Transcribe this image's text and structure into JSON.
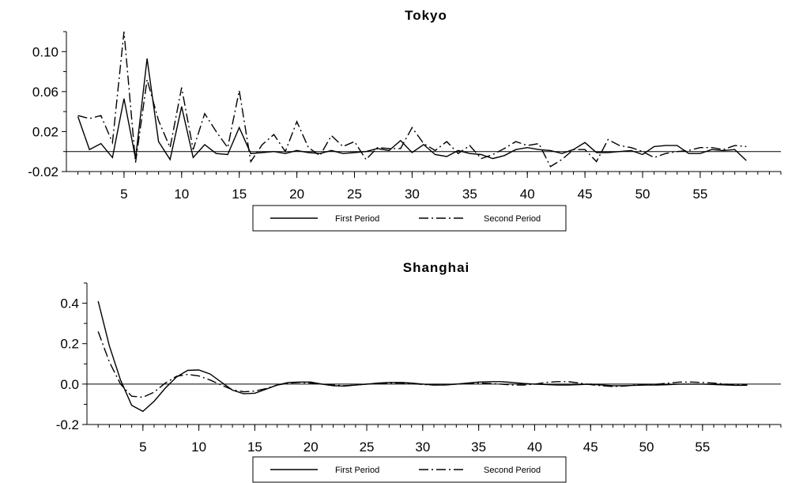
{
  "chart_data": [
    {
      "type": "line",
      "title": "Tokyo",
      "xlabel": "",
      "ylabel": "",
      "xlim": [
        0,
        62
      ],
      "ylim": [
        -0.02,
        0.12
      ],
      "x_ticks": [
        5,
        10,
        15,
        20,
        25,
        30,
        35,
        40,
        45,
        50,
        55
      ],
      "x_minor_ticks": [
        1,
        2,
        3,
        4,
        5,
        6,
        7,
        8,
        9,
        10,
        11,
        12,
        13,
        14,
        15,
        16,
        17,
        18,
        19,
        20,
        21,
        22,
        23,
        24,
        25,
        26,
        27,
        28,
        29,
        30,
        31,
        32,
        33,
        34,
        35,
        36,
        37,
        38,
        39,
        40,
        41,
        42,
        43,
        44,
        45,
        46,
        47,
        48,
        49,
        50,
        51,
        52,
        53,
        54,
        55,
        56,
        57,
        58,
        59,
        60,
        61,
        62
      ],
      "y_ticks": [
        -0.02,
        0.02,
        0.06,
        0.1
      ],
      "y_tick_labels": [
        "-0.02",
        "0.02",
        "0.06",
        "0.10"
      ],
      "y_minor_ticks": [
        0.0,
        0.04,
        0.08,
        0.12
      ],
      "zero_line": true,
      "grid": false,
      "legend_position": "bottom-center",
      "series": [
        {
          "name": "First Period",
          "style": "solid",
          "color": "#000000",
          "x": [
            1,
            2,
            3,
            4,
            5,
            6,
            7,
            8,
            9,
            10,
            11,
            12,
            13,
            14,
            15,
            16,
            17,
            18,
            19,
            20,
            21,
            22,
            23,
            24,
            25,
            26,
            27,
            28,
            29,
            30,
            31,
            32,
            33,
            34,
            35,
            36,
            37,
            38,
            39,
            40,
            41,
            42,
            43,
            44,
            45,
            46,
            47,
            48,
            49,
            50,
            51,
            52,
            53,
            54,
            55,
            56,
            57,
            58,
            59
          ],
          "values": [
            0.035,
            0.002,
            0.008,
            -0.006,
            0.053,
            -0.007,
            0.093,
            0.01,
            -0.008,
            0.045,
            -0.006,
            0.007,
            -0.002,
            -0.003,
            0.024,
            -0.002,
            -0.001,
            0.0,
            -0.002,
            0.001,
            -0.001,
            -0.002,
            0.001,
            -0.002,
            -0.001,
            0.0,
            0.003,
            0.001,
            0.011,
            -0.001,
            0.007,
            -0.003,
            -0.005,
            0.001,
            -0.002,
            -0.003,
            -0.007,
            -0.004,
            0.002,
            0.004,
            0.002,
            0.001,
            -0.002,
            0.002,
            0.009,
            -0.001,
            -0.001,
            0.0,
            0.001,
            -0.003,
            0.005,
            0.006,
            0.006,
            -0.002,
            -0.002,
            0.002,
            0.001,
            0.002,
            -0.009
          ]
        },
        {
          "name": "Second Period",
          "style": "dashdot",
          "color": "#000000",
          "x": [
            1,
            2,
            3,
            4,
            5,
            6,
            7,
            8,
            9,
            10,
            11,
            12,
            13,
            14,
            15,
            16,
            17,
            18,
            19,
            20,
            21,
            22,
            23,
            24,
            25,
            26,
            27,
            28,
            29,
            30,
            31,
            32,
            33,
            34,
            35,
            36,
            37,
            38,
            39,
            40,
            41,
            42,
            43,
            44,
            45,
            46,
            47,
            48,
            49,
            50,
            51,
            52,
            53,
            54,
            55,
            56,
            57,
            58,
            59
          ],
          "values": [
            0.036,
            0.033,
            0.036,
            0.009,
            0.12,
            -0.011,
            0.072,
            0.031,
            0.004,
            0.064,
            0.002,
            0.038,
            0.02,
            0.004,
            0.061,
            -0.01,
            0.007,
            0.017,
            0.0,
            0.03,
            0.004,
            -0.004,
            0.016,
            0.005,
            0.01,
            -0.008,
            0.004,
            0.003,
            0.003,
            0.024,
            0.008,
            0.001,
            0.01,
            -0.002,
            0.006,
            -0.007,
            -0.003,
            0.003,
            0.01,
            0.006,
            0.008,
            -0.015,
            -0.008,
            0.002,
            0.002,
            -0.01,
            0.012,
            0.006,
            0.004,
            0.0,
            -0.006,
            -0.002,
            0.0,
            0.001,
            0.004,
            0.004,
            0.002,
            0.006,
            0.005
          ]
        }
      ]
    },
    {
      "type": "line",
      "title": "Shanghai",
      "xlabel": "",
      "ylabel": "",
      "xlim": [
        0,
        62
      ],
      "ylim": [
        -0.2,
        0.5
      ],
      "x_ticks": [
        5,
        10,
        15,
        20,
        25,
        30,
        35,
        40,
        45,
        50,
        55
      ],
      "x_minor_ticks": [
        1,
        2,
        3,
        4,
        5,
        6,
        7,
        8,
        9,
        10,
        11,
        12,
        13,
        14,
        15,
        16,
        17,
        18,
        19,
        20,
        21,
        22,
        23,
        24,
        25,
        26,
        27,
        28,
        29,
        30,
        31,
        32,
        33,
        34,
        35,
        36,
        37,
        38,
        39,
        40,
        41,
        42,
        43,
        44,
        45,
        46,
        47,
        48,
        49,
        50,
        51,
        52,
        53,
        54,
        55,
        56,
        57,
        58,
        59,
        60,
        61,
        62
      ],
      "y_ticks": [
        -0.2,
        0.0,
        0.2,
        0.4
      ],
      "y_tick_labels": [
        "-0.2",
        "0.0",
        "0.2",
        "0.4"
      ],
      "y_minor_ticks": [
        -0.1,
        0.1,
        0.3,
        0.5
      ],
      "zero_line": true,
      "grid": false,
      "legend_position": "bottom-center",
      "series": [
        {
          "name": "First Period",
          "style": "solid",
          "color": "#000000",
          "x": [
            1,
            2,
            3,
            4,
            5,
            6,
            7,
            8,
            9,
            10,
            11,
            12,
            13,
            14,
            15,
            16,
            17,
            18,
            19,
            20,
            21,
            22,
            23,
            24,
            25,
            26,
            27,
            28,
            29,
            30,
            31,
            32,
            33,
            34,
            35,
            36,
            37,
            38,
            39,
            40,
            41,
            42,
            43,
            44,
            45,
            46,
            47,
            48,
            49,
            50,
            51,
            52,
            53,
            54,
            55,
            56,
            57,
            58,
            59
          ],
          "values": [
            0.41,
            0.19,
            0.02,
            -0.105,
            -0.135,
            -0.085,
            -0.02,
            0.035,
            0.068,
            0.07,
            0.05,
            0.01,
            -0.03,
            -0.048,
            -0.045,
            -0.025,
            -0.005,
            0.008,
            0.01,
            0.01,
            0.0,
            -0.008,
            -0.01,
            -0.005,
            0.0,
            0.005,
            0.008,
            0.008,
            0.005,
            0.0,
            -0.005,
            -0.005,
            0.0,
            0.005,
            0.01,
            0.012,
            0.012,
            0.008,
            0.003,
            0.0,
            -0.002,
            -0.005,
            -0.005,
            -0.003,
            0.0,
            -0.005,
            -0.008,
            -0.008,
            -0.006,
            -0.005,
            -0.005,
            -0.003,
            0.0,
            0.0,
            0.0,
            -0.002,
            -0.004,
            -0.006,
            -0.006
          ]
        },
        {
          "name": "Second Period",
          "style": "dashdot",
          "color": "#000000",
          "x": [
            1,
            2,
            3,
            4,
            5,
            6,
            7,
            8,
            9,
            10,
            11,
            12,
            13,
            14,
            15,
            16,
            17,
            18,
            19,
            20,
            21,
            22,
            23,
            24,
            25,
            26,
            27,
            28,
            29,
            30,
            31,
            32,
            33,
            34,
            35,
            36,
            37,
            38,
            39,
            40,
            41,
            42,
            43,
            44,
            45,
            46,
            47,
            48,
            49,
            50,
            51,
            52,
            53,
            54,
            55,
            56,
            57,
            58,
            59
          ],
          "values": [
            0.26,
            0.11,
            0.0,
            -0.06,
            -0.065,
            -0.04,
            0.005,
            0.038,
            0.048,
            0.04,
            0.02,
            -0.005,
            -0.028,
            -0.038,
            -0.035,
            -0.022,
            -0.005,
            0.005,
            0.008,
            0.005,
            0.0,
            -0.005,
            -0.008,
            -0.005,
            0.0,
            0.003,
            0.005,
            0.005,
            0.003,
            -0.002,
            -0.005,
            -0.003,
            0.0,
            0.003,
            0.005,
            0.003,
            0.0,
            -0.005,
            -0.005,
            0.0,
            0.008,
            0.012,
            0.012,
            0.005,
            -0.003,
            -0.008,
            -0.012,
            -0.01,
            -0.005,
            -0.003,
            0.0,
            0.005,
            0.01,
            0.01,
            0.008,
            0.005,
            0.0,
            -0.003,
            -0.004
          ]
        }
      ]
    }
  ]
}
